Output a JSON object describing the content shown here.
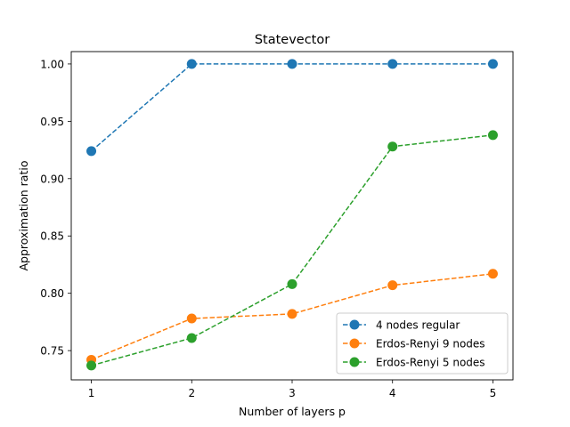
{
  "chart_data": {
    "type": "line",
    "title": "Statevector",
    "xlabel": "Number of layers p",
    "ylabel": "Approximation ratio",
    "x": [
      1,
      2,
      3,
      4,
      5
    ],
    "xlim": [
      0.8,
      5.2
    ],
    "ylim": [
      0.7245,
      1.0108
    ],
    "xticks": [
      1,
      2,
      3,
      4,
      5
    ],
    "yticks": [
      0.75,
      0.8,
      0.85,
      0.9,
      0.95,
      1.0
    ],
    "ytick_labels": [
      "0.75",
      "0.80",
      "0.85",
      "0.90",
      "0.95",
      "1.00"
    ],
    "grid": false,
    "legend_position": "lower-right",
    "line_style": "dashed",
    "marker": "circle",
    "series": [
      {
        "name": "4 nodes regular",
        "color": "#1f77b4",
        "values": [
          0.924,
          1.0,
          1.0,
          1.0,
          1.0
        ]
      },
      {
        "name": "Erdos-Renyi 9 nodes",
        "color": "#ff7f0e",
        "values": [
          0.742,
          0.778,
          0.782,
          0.807,
          0.817
        ]
      },
      {
        "name": "Erdos-Renyi 5 nodes",
        "color": "#2ca02c",
        "values": [
          0.737,
          0.761,
          0.808,
          0.928,
          0.938
        ]
      }
    ]
  }
}
